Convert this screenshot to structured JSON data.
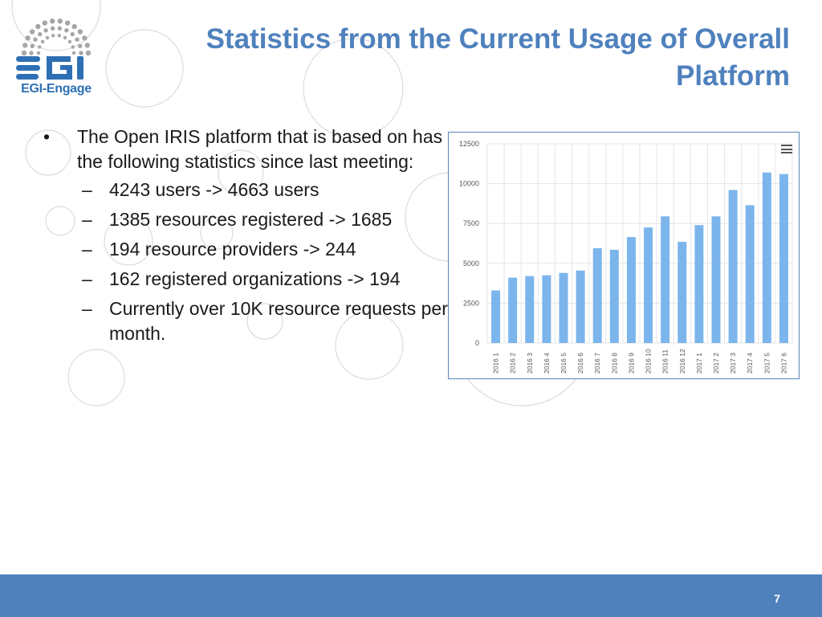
{
  "logo": {
    "text": "EGI-Engage",
    "mark": "egi-logo"
  },
  "slide": {
    "title": "Statistics from the Current Usage of Overall Platform",
    "bullet": "The Open IRIS platform that is based on has the following statistics since last meeting:",
    "sub_items": [
      "4243 users -> 4663 users",
      "1385 resources registered -> 1685",
      "194 resource providers -> 244",
      "162 registered organizations -> 194",
      "Currently over 10K resource requests per month."
    ],
    "page_number": "7"
  },
  "colors": {
    "accent": "#4f81bd",
    "bar": "#7cb5ec",
    "footer": "#4f81bd"
  },
  "chart_data": {
    "type": "bar",
    "categories": [
      "2016 1",
      "2016 2",
      "2016 3",
      "2016 4",
      "2016 5",
      "2016 6",
      "2016 7",
      "2016 8",
      "2016 9",
      "2016 10",
      "2016 11",
      "2016 12",
      "2017 1",
      "2017 2",
      "2017 3",
      "2017 4",
      "2017 5",
      "2017 6"
    ],
    "values": [
      3300,
      4100,
      4200,
      4250,
      4400,
      4550,
      5950,
      5850,
      6650,
      7250,
      7950,
      6350,
      7400,
      7950,
      9600,
      8650,
      10700,
      10600
    ],
    "ylim": [
      0,
      12500
    ],
    "yticks": [
      "0",
      "2500",
      "5000",
      "7500",
      "10000",
      "12500"
    ],
    "grid": true,
    "legend": "none",
    "menu_icon": "hamburger-menu-icon"
  }
}
